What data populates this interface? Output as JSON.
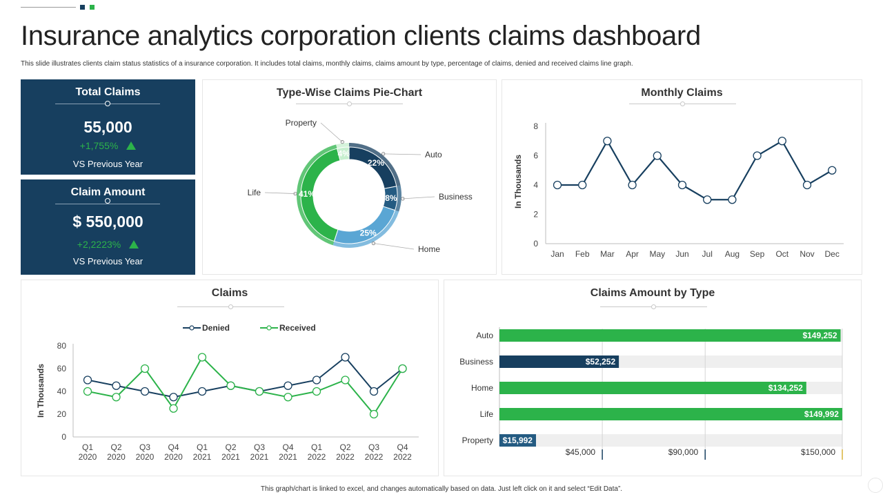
{
  "page": {
    "title": "Insurance analytics corporation clients claims dashboard",
    "subtitle": "This slide illustrates clients claim status statistics of a insurance corporation. It includes total claims, monthly  claims, claims amount  by type, percentage of claims, denied  and received claims line  graph.",
    "footer": "This graph/chart is linked to excel, and changes automatically based on data. Just left click on it and select “Edit Data”."
  },
  "kpis": {
    "total_claims": {
      "title": "Total Claims",
      "value": "55,000",
      "change": "+1,755%",
      "vs": "VS Previous  Year"
    },
    "claim_amount": {
      "title": "Claim Amount",
      "value": "$ 550,000",
      "change": "+2,2223%",
      "vs": "VS Previous  Year"
    }
  },
  "colors": {
    "navy": "#173f5f",
    "green": "#2cb34a",
    "mid_blue": "#245b82",
    "light_blue": "#5aa6d4",
    "pale_green": "#c7efcf",
    "bar_bg": "#efefef"
  },
  "chart_data": [
    {
      "id": "pie",
      "type": "pie",
      "title": "Type-Wise Claims Pie-Chart",
      "slices": [
        {
          "label": "Auto",
          "value": 22,
          "display": "22%",
          "color": "#173f5f"
        },
        {
          "label": "Business",
          "value": 8,
          "display": "8%",
          "color": "#245b82"
        },
        {
          "label": "Home",
          "value": 25,
          "display": "25%",
          "color": "#5aa6d4"
        },
        {
          "label": "Life",
          "value": 41,
          "display": "41%",
          "color": "#2cb34a"
        },
        {
          "label": "Property",
          "value": 4,
          "display": "4%",
          "color": "#c7efcf"
        }
      ]
    },
    {
      "id": "monthly",
      "type": "line",
      "title": "Monthly Claims",
      "ylabel": "In Thousands",
      "categories": [
        "Jan",
        "Feb",
        "Mar",
        "Apr",
        "May",
        "Jun",
        "Jul",
        "Aug",
        "Sep",
        "Oct",
        "Nov",
        "Dec"
      ],
      "values": [
        4,
        4,
        7,
        4,
        6,
        4,
        3,
        3,
        6,
        7,
        4,
        5
      ],
      "ylim": [
        0,
        8
      ],
      "yticks": [
        "0",
        "2",
        "4",
        "6",
        "8"
      ],
      "color": "#173f5f"
    },
    {
      "id": "claims",
      "type": "line",
      "title": "Claims",
      "ylabel": "In Thousands",
      "categories": [
        [
          "Q1",
          "2020"
        ],
        [
          "Q2",
          "2020"
        ],
        [
          "Q3",
          "2020"
        ],
        [
          "Q4",
          "2020"
        ],
        [
          "Q1",
          "2021"
        ],
        [
          "Q2",
          "2021"
        ],
        [
          "Q3",
          "2021"
        ],
        [
          "Q4",
          "2021"
        ],
        [
          "Q1",
          "2022"
        ],
        [
          "Q2",
          "2022"
        ],
        [
          "Q3",
          "2022"
        ],
        [
          "Q4",
          "2022"
        ]
      ],
      "ylim": [
        0,
        80
      ],
      "yticks": [
        "0",
        "20",
        "40",
        "60",
        "80"
      ],
      "legend": "top-center",
      "series": [
        {
          "name": "Denied",
          "color": "#173f5f",
          "values": [
            50,
            45,
            40,
            35,
            40,
            45,
            40,
            45,
            50,
            70,
            40,
            60
          ]
        },
        {
          "name": "Received",
          "color": "#2cb34a",
          "values": [
            40,
            35,
            60,
            25,
            70,
            45,
            40,
            35,
            40,
            50,
            20,
            60
          ]
        }
      ]
    },
    {
      "id": "amount",
      "type": "bar",
      "orientation": "horizontal",
      "title": "Claims Amount by Type",
      "xlim": [
        0,
        150000
      ],
      "xticks": [
        {
          "value": 45000,
          "label": "$45,000"
        },
        {
          "value": 90000,
          "label": "$90,000"
        },
        {
          "value": 150000,
          "label": "$150,000"
        }
      ],
      "bars": [
        {
          "label": "Auto",
          "value": 149252,
          "display": "$149,252",
          "color": "#2cb34a"
        },
        {
          "label": "Business",
          "value": 52252,
          "display": "$52,252",
          "color": "#173f5f"
        },
        {
          "label": "Home",
          "value": 134252,
          "display": "$134,252",
          "color": "#2cb34a"
        },
        {
          "label": "Life",
          "value": 149992,
          "display": "$149,992",
          "color": "#2cb34a"
        },
        {
          "label": "Property",
          "value": 15992,
          "display": "$15,992",
          "color": "#245b82"
        }
      ]
    }
  ]
}
